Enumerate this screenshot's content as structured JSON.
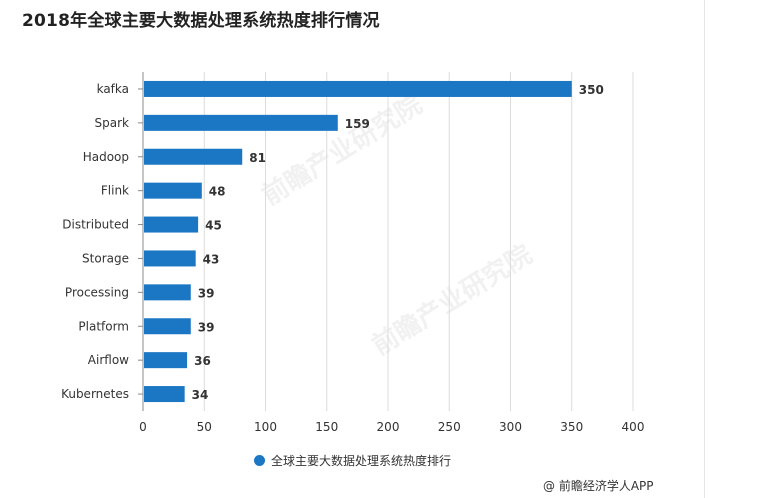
{
  "page": {
    "title": "2018年全球主要大数据处理系统热度排行情况",
    "source": "@ 前瞻经济学人APP",
    "watermark": "前瞻产业研究院"
  },
  "colors": {
    "bar": "#1b76c4",
    "grid": "#dcdcdc",
    "axis": "#888888"
  },
  "chart_data": {
    "type": "bar",
    "orientation": "horizontal",
    "categories": [
      "kafka",
      "Spark",
      "Hadoop",
      "Flink",
      "Distributed",
      "Storage",
      "Processing",
      "Platform",
      "Airflow",
      "Kubernetes"
    ],
    "series": [
      {
        "name": "全球主要大数据处理系统热度排行",
        "values": [
          350,
          159,
          81,
          48,
          45,
          43,
          39,
          39,
          36,
          34
        ]
      }
    ],
    "xlim": [
      0,
      400
    ],
    "xticks": [
      0,
      50,
      100,
      150,
      200,
      250,
      300,
      350,
      400
    ],
    "grid": "vertical",
    "legend_position": "bottom-center"
  }
}
